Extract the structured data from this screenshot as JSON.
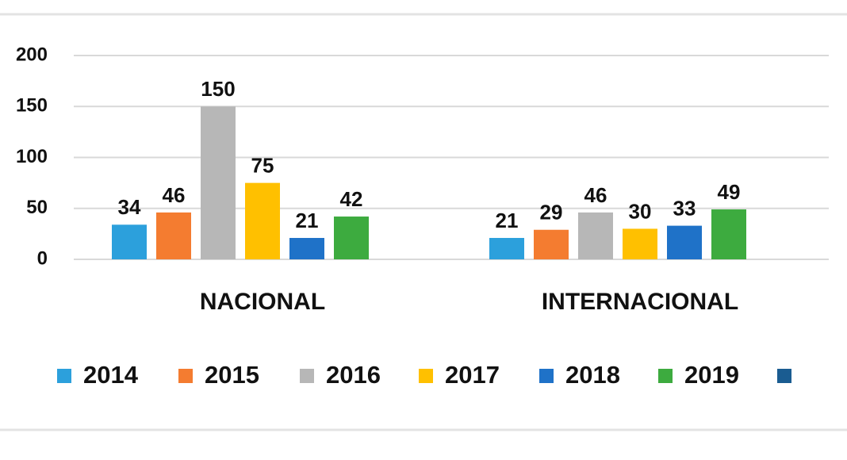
{
  "chart_data": {
    "type": "bar",
    "categories": [
      "NACIONAL",
      "INTERNACIONAL"
    ],
    "series": [
      {
        "name": "2014",
        "color": "#2ca0dc",
        "values": [
          34,
          21
        ]
      },
      {
        "name": "2015",
        "color": "#f47c30",
        "values": [
          46,
          29
        ]
      },
      {
        "name": "2016",
        "color": "#b7b7b7",
        "values": [
          150,
          46
        ]
      },
      {
        "name": "2017",
        "color": "#ffc000",
        "values": [
          75,
          30
        ]
      },
      {
        "name": "2018",
        "color": "#1f72c8",
        "values": [
          21,
          33
        ]
      },
      {
        "name": "2019",
        "color": "#3dab3f",
        "values": [
          42,
          49
        ]
      },
      {
        "name": null,
        "color": "#1a5c91",
        "values": [
          null,
          null
        ]
      }
    ],
    "ylim": [
      0,
      200
    ],
    "yticks": [
      0,
      50,
      100,
      150,
      200
    ],
    "grid": true
  }
}
